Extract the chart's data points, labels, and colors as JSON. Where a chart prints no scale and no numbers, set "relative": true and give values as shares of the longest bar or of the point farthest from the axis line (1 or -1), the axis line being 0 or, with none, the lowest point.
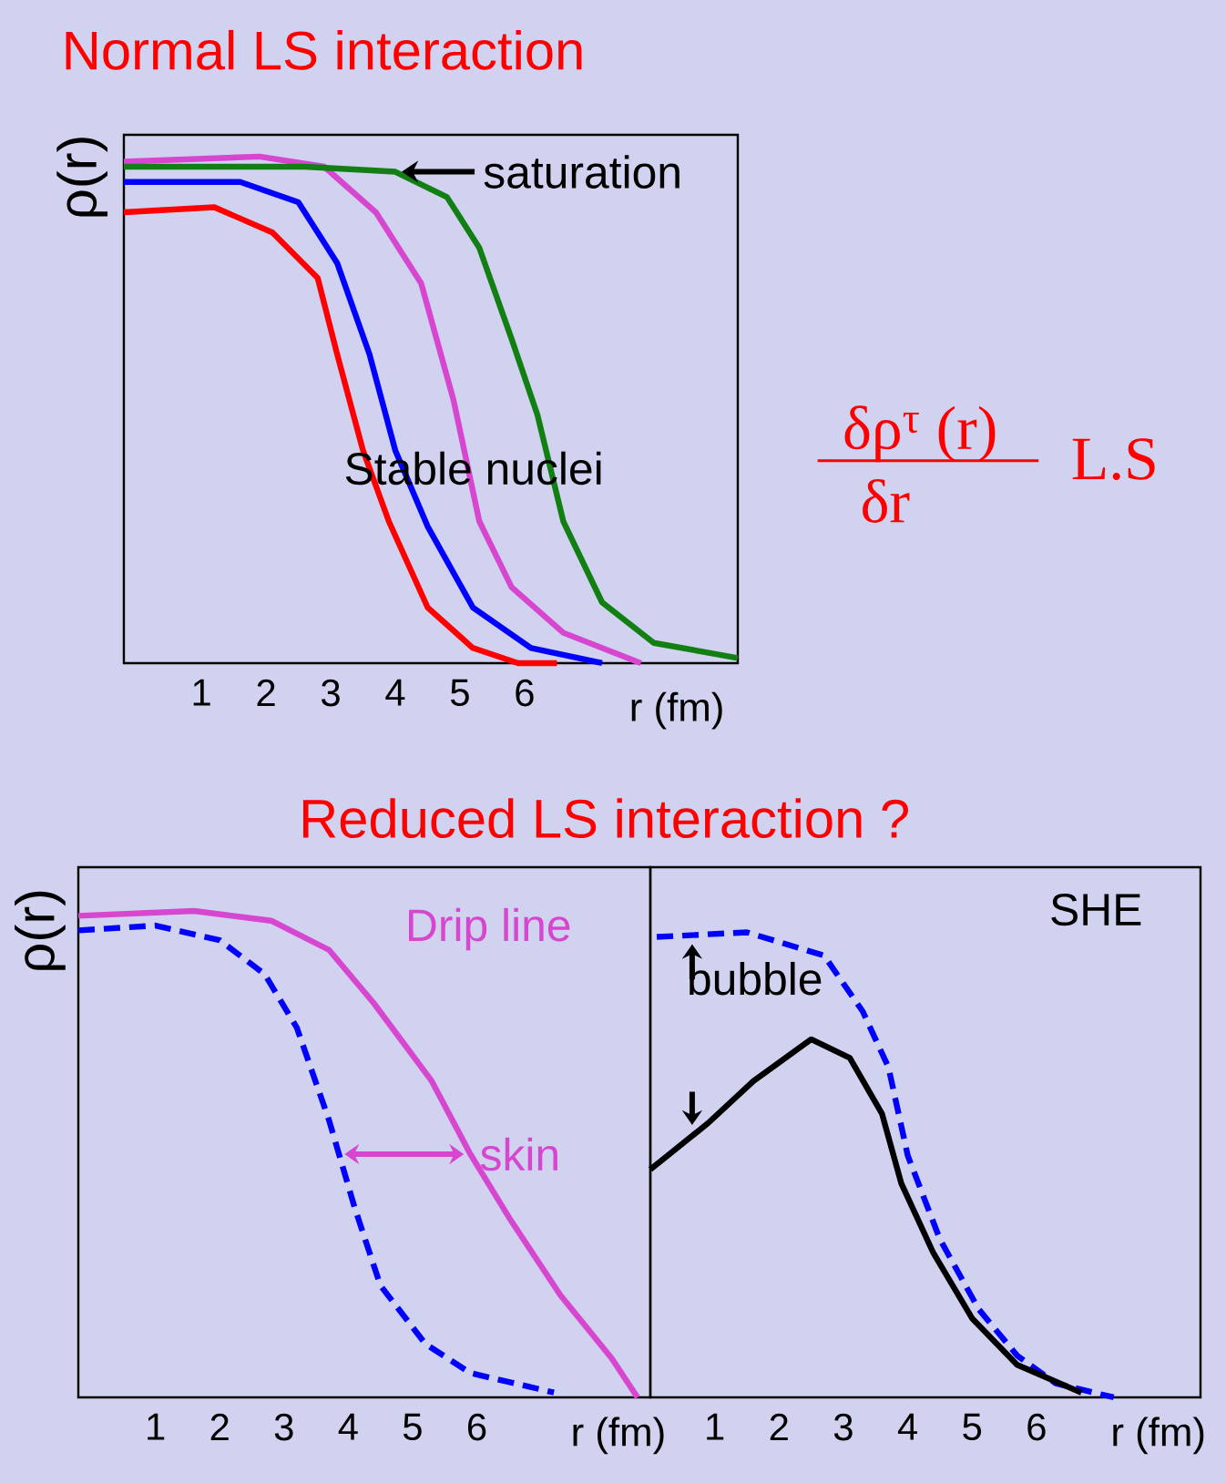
{
  "chart_data": [
    {
      "type": "line",
      "title": "Normal LS interaction",
      "xlabel": "r (fm)",
      "ylabel": "ρ(r)",
      "relative": true,
      "tick_labels": "x",
      "xlim": [
        -0.2,
        9.3
      ],
      "xticks": [
        1,
        2,
        3,
        4,
        5,
        6
      ],
      "series": [
        {
          "color": "#ff0000",
          "x": [
            -0.2,
            1.2,
            2.1,
            2.8,
            3.1,
            3.5,
            3.9,
            4.5,
            5.2,
            5.9,
            6.5
          ],
          "values": [
            0.89,
            0.9,
            0.85,
            0.76,
            0.61,
            0.42,
            0.28,
            0.11,
            0.03,
            0,
            0
          ]
        },
        {
          "color": "#0000ff",
          "x": [
            -0.2,
            1.6,
            2.5,
            3.1,
            3.6,
            4.0,
            4.5,
            5.2,
            6.1,
            7.2
          ],
          "values": [
            0.95,
            0.95,
            0.91,
            0.79,
            0.61,
            0.42,
            0.27,
            0.11,
            0.03,
            0
          ]
        },
        {
          "color": "#d646cf",
          "x": [
            -0.2,
            1.9,
            2.9,
            3.7,
            4.4,
            4.9,
            5.3,
            5.8,
            6.6,
            7.8
          ],
          "values": [
            0.99,
            1,
            0.98,
            0.89,
            0.75,
            0.52,
            0.28,
            0.15,
            0.06,
            0
          ]
        },
        {
          "color": "#127f12",
          "x": [
            -0.2,
            2.6,
            4.0,
            4.8,
            5.3,
            5.8,
            6.2,
            6.6,
            7.2,
            8.0,
            9.3
          ],
          "values": [
            0.98,
            0.98,
            0.97,
            0.92,
            0.82,
            0.64,
            0.49,
            0.28,
            0.12,
            0.04,
            0.01
          ]
        }
      ],
      "annotations": [
        {
          "text": "saturation",
          "x": 4.1,
          "y": 0.97
        },
        "Stable nuclei",
        "δρ$^{τ}$ (r)",
        "δr",
        "L.S"
      ]
    },
    {
      "type": "line",
      "title": "Reduced LS interaction ?",
      "xlabel": "r (fm)",
      "ylabel": "ρ(r)",
      "relative": true,
      "tick_labels": "x",
      "xlim": [
        -0.2,
        8.7
      ],
      "xticks": [
        1,
        2,
        3,
        4,
        5,
        6
      ],
      "series": [
        {
          "name": "Drip line",
          "color": "#d646cf",
          "x": [
            -0.2,
            1.6,
            2.8,
            3.7,
            4.4,
            5.3,
            5.9,
            6.5,
            7.3,
            8.1,
            8.5
          ],
          "values": [
            0.99,
            1,
            0.98,
            0.92,
            0.81,
            0.65,
            0.5,
            0.37,
            0.21,
            0.08,
            0
          ]
        },
        {
          "color": "#0000ff",
          "line_style": "dashed",
          "x": [
            -0.2,
            1.0,
            2.0,
            2.7,
            3.2,
            3.7,
            4.1,
            4.5,
            5.2,
            5.9,
            7.2
          ],
          "values": [
            0.96,
            0.97,
            0.94,
            0.87,
            0.76,
            0.57,
            0.39,
            0.23,
            0.11,
            0.05,
            0.01
          ]
        }
      ],
      "annotations": [
        {
          "text": "skin",
          "x": 5.8,
          "y": 0.5
        }
      ]
    },
    {
      "type": "line",
      "xlabel": "r (fm)",
      "relative": true,
      "tick_labels": "x",
      "xlim": [
        0,
        8.55
      ],
      "xticks": [
        1,
        2,
        3,
        4,
        5,
        6
      ],
      "series": [
        {
          "color": "#0000ff",
          "line_style": "dashed",
          "x": [
            0.1,
            1.5,
            2.7,
            3.3,
            3.7,
            4.0,
            4.5,
            5.1,
            5.7,
            6.3,
            7.2
          ],
          "values": [
            0.99,
            1.0,
            0.95,
            0.83,
            0.71,
            0.52,
            0.34,
            0.19,
            0.09,
            0.03,
            0
          ]
        },
        {
          "color": "#000000",
          "x": [
            0,
            0.9,
            1.6,
            2.5,
            3.1,
            3.6,
            3.9,
            4.4,
            5.0,
            5.7,
            6.7
          ],
          "values": [
            0.49,
            0.59,
            0.68,
            0.77,
            0.73,
            0.61,
            0.46,
            0.31,
            0.17,
            0.07,
            0.01
          ]
        }
      ],
      "annotations": [
        "SHE",
        "bubble"
      ]
    }
  ]
}
